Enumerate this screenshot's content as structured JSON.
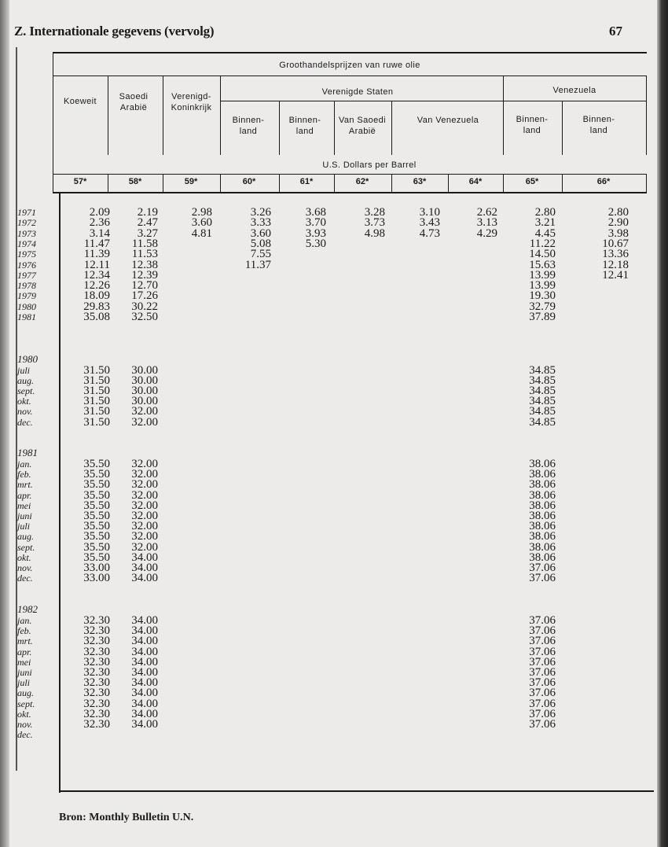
{
  "header": {
    "title": "Z. Internationale gegevens (vervolg)",
    "page_number": "67"
  },
  "table": {
    "main_heading": "Groothandelsprijzen van ruwe olie",
    "group_headings": {
      "us": "Verenigde Staten",
      "venezuela": "Venezuela"
    },
    "columns": [
      "Koeweit",
      "Saoedi Arabië",
      "Verenigd-Koninkrijk",
      "Binnen-land",
      "Binnen-land",
      "Van Saoedi Arabië",
      "Van Venezuela",
      "",
      "Binnen-land",
      "Binnen-land"
    ],
    "unit": "U.S. Dollars per Barrel",
    "codes": [
      "57*",
      "58*",
      "59*",
      "60*",
      "61*",
      "62*",
      "63*",
      "64*",
      "65*",
      "66*"
    ],
    "sections": [
      {
        "label": "",
        "rows": [
          {
            "label": "1971",
            "values": [
              "2.09",
              "2.19",
              "2.98",
              "3.26",
              "3.68",
              "3.28",
              "3.10",
              "2.62",
              "2.80",
              "2.80"
            ]
          },
          {
            "label": "1972",
            "values": [
              "2.36",
              "2.47",
              "3.60",
              "3.33",
              "3.70",
              "3.73",
              "3.43",
              "3.13",
              "3.21",
              "2.90"
            ]
          },
          {
            "label": "1973",
            "values": [
              "3.14",
              "3.27",
              "4.81",
              "3.60",
              "3.93",
              "4.98",
              "4.73",
              "4.29",
              "4.45",
              "3.98"
            ]
          },
          {
            "label": "1974",
            "values": [
              "11.47",
              "11.58",
              "",
              "5.08",
              "5.30",
              "",
              "",
              "",
              "11.22",
              "10.67"
            ]
          },
          {
            "label": "1975",
            "values": [
              "11.39",
              "11.53",
              "",
              "7.55",
              "",
              "",
              "",
              "",
              "14.50",
              "13.36"
            ]
          },
          {
            "label": "1976",
            "values": [
              "12.11",
              "12.38",
              "",
              "11.37",
              "",
              "",
              "",
              "",
              "15.63",
              "12.18"
            ]
          },
          {
            "label": "1977",
            "values": [
              "12.34",
              "12.39",
              "",
              "",
              "",
              "",
              "",
              "",
              "13.99",
              "12.41"
            ]
          },
          {
            "label": "1978",
            "values": [
              "12.26",
              "12.70",
              "",
              "",
              "",
              "",
              "",
              "",
              "13.99",
              ""
            ]
          },
          {
            "label": "1979",
            "values": [
              "18.09",
              "17.26",
              "",
              "",
              "",
              "",
              "",
              "",
              "19.30",
              ""
            ]
          },
          {
            "label": "1980",
            "values": [
              "29.83",
              "30.22",
              "",
              "",
              "",
              "",
              "",
              "",
              "32.79",
              ""
            ]
          },
          {
            "label": "1981",
            "values": [
              "35.08",
              "32.50",
              "",
              "",
              "",
              "",
              "",
              "",
              "37.89",
              ""
            ]
          }
        ]
      },
      {
        "label": "1980",
        "rows": [
          {
            "label": "juli",
            "values": [
              "31.50",
              "30.00",
              "",
              "",
              "",
              "",
              "",
              "",
              "34.85",
              ""
            ]
          },
          {
            "label": "aug.",
            "values": [
              "31.50",
              "30.00",
              "",
              "",
              "",
              "",
              "",
              "",
              "34.85",
              ""
            ]
          },
          {
            "label": "sept.",
            "values": [
              "31.50",
              "30.00",
              "",
              "",
              "",
              "",
              "",
              "",
              "34.85",
              ""
            ]
          },
          {
            "label": "okt.",
            "values": [
              "31.50",
              "30.00",
              "",
              "",
              "",
              "",
              "",
              "",
              "34.85",
              ""
            ]
          },
          {
            "label": "nov.",
            "values": [
              "31.50",
              "32.00",
              "",
              "",
              "",
              "",
              "",
              "",
              "34.85",
              ""
            ]
          },
          {
            "label": "dec.",
            "values": [
              "31.50",
              "32.00",
              "",
              "",
              "",
              "",
              "",
              "",
              "34.85",
              ""
            ]
          }
        ]
      },
      {
        "label": "1981",
        "rows": [
          {
            "label": "jan.",
            "values": [
              "35.50",
              "32.00",
              "",
              "",
              "",
              "",
              "",
              "",
              "38.06",
              ""
            ]
          },
          {
            "label": "feb.",
            "values": [
              "35.50",
              "32.00",
              "",
              "",
              "",
              "",
              "",
              "",
              "38.06",
              ""
            ]
          },
          {
            "label": "mrt.",
            "values": [
              "35.50",
              "32.00",
              "",
              "",
              "",
              "",
              "",
              "",
              "38.06",
              ""
            ]
          },
          {
            "label": "apr.",
            "values": [
              "35.50",
              "32.00",
              "",
              "",
              "",
              "",
              "",
              "",
              "38.06",
              ""
            ]
          },
          {
            "label": "mei",
            "values": [
              "35.50",
              "32.00",
              "",
              "",
              "",
              "",
              "",
              "",
              "38.06",
              ""
            ]
          },
          {
            "label": "juni",
            "values": [
              "35.50",
              "32.00",
              "",
              "",
              "",
              "",
              "",
              "",
              "38.06",
              ""
            ]
          },
          {
            "label": "juli",
            "values": [
              "35.50",
              "32.00",
              "",
              "",
              "",
              "",
              "",
              "",
              "38.06",
              ""
            ]
          },
          {
            "label": "aug.",
            "values": [
              "35.50",
              "32.00",
              "",
              "",
              "",
              "",
              "",
              "",
              "38.06",
              ""
            ]
          },
          {
            "label": "sept.",
            "values": [
              "35.50",
              "32.00",
              "",
              "",
              "",
              "",
              "",
              "",
              "38.06",
              ""
            ]
          },
          {
            "label": "okt.",
            "values": [
              "35.50",
              "34.00",
              "",
              "",
              "",
              "",
              "",
              "",
              "38.06",
              ""
            ]
          },
          {
            "label": "nov.",
            "values": [
              "33.00",
              "34.00",
              "",
              "",
              "",
              "",
              "",
              "",
              "37.06",
              ""
            ]
          },
          {
            "label": "dec.",
            "values": [
              "33.00",
              "34.00",
              "",
              "",
              "",
              "",
              "",
              "",
              "37.06",
              ""
            ]
          }
        ]
      },
      {
        "label": "1982",
        "rows": [
          {
            "label": "jan.",
            "values": [
              "32.30",
              "34.00",
              "",
              "",
              "",
              "",
              "",
              "",
              "37.06",
              ""
            ]
          },
          {
            "label": "feb.",
            "values": [
              "32.30",
              "34.00",
              "",
              "",
              "",
              "",
              "",
              "",
              "37.06",
              ""
            ]
          },
          {
            "label": "mrt.",
            "values": [
              "32.30",
              "34.00",
              "",
              "",
              "",
              "",
              "",
              "",
              "37.06",
              ""
            ]
          },
          {
            "label": "apr.",
            "values": [
              "32.30",
              "34.00",
              "",
              "",
              "",
              "",
              "",
              "",
              "37.06",
              ""
            ]
          },
          {
            "label": "mei",
            "values": [
              "32.30",
              "34.00",
              "",
              "",
              "",
              "",
              "",
              "",
              "37.06",
              ""
            ]
          },
          {
            "label": "juni",
            "values": [
              "32.30",
              "34.00",
              "",
              "",
              "",
              "",
              "",
              "",
              "37.06",
              ""
            ]
          },
          {
            "label": "juli",
            "values": [
              "32.30",
              "34.00",
              "",
              "",
              "",
              "",
              "",
              "",
              "37.06",
              ""
            ]
          },
          {
            "label": "aug.",
            "values": [
              "32.30",
              "34.00",
              "",
              "",
              "",
              "",
              "",
              "",
              "37.06",
              ""
            ]
          },
          {
            "label": "sept.",
            "values": [
              "32.30",
              "34.00",
              "",
              "",
              "",
              "",
              "",
              "",
              "37.06",
              ""
            ]
          },
          {
            "label": "okt.",
            "values": [
              "32.30",
              "34.00",
              "",
              "",
              "",
              "",
              "",
              "",
              "37.06",
              ""
            ]
          },
          {
            "label": "nov.",
            "values": [
              "32.30",
              "34.00",
              "",
              "",
              "",
              "",
              "",
              "",
              "37.06",
              ""
            ]
          },
          {
            "label": "dec.",
            "values": [
              "",
              "",
              "",
              "",
              "",
              "",
              "",
              "",
              "",
              ""
            ]
          }
        ]
      }
    ]
  },
  "footer": {
    "source": "Bron:  Monthly Bulletin U.N."
  }
}
